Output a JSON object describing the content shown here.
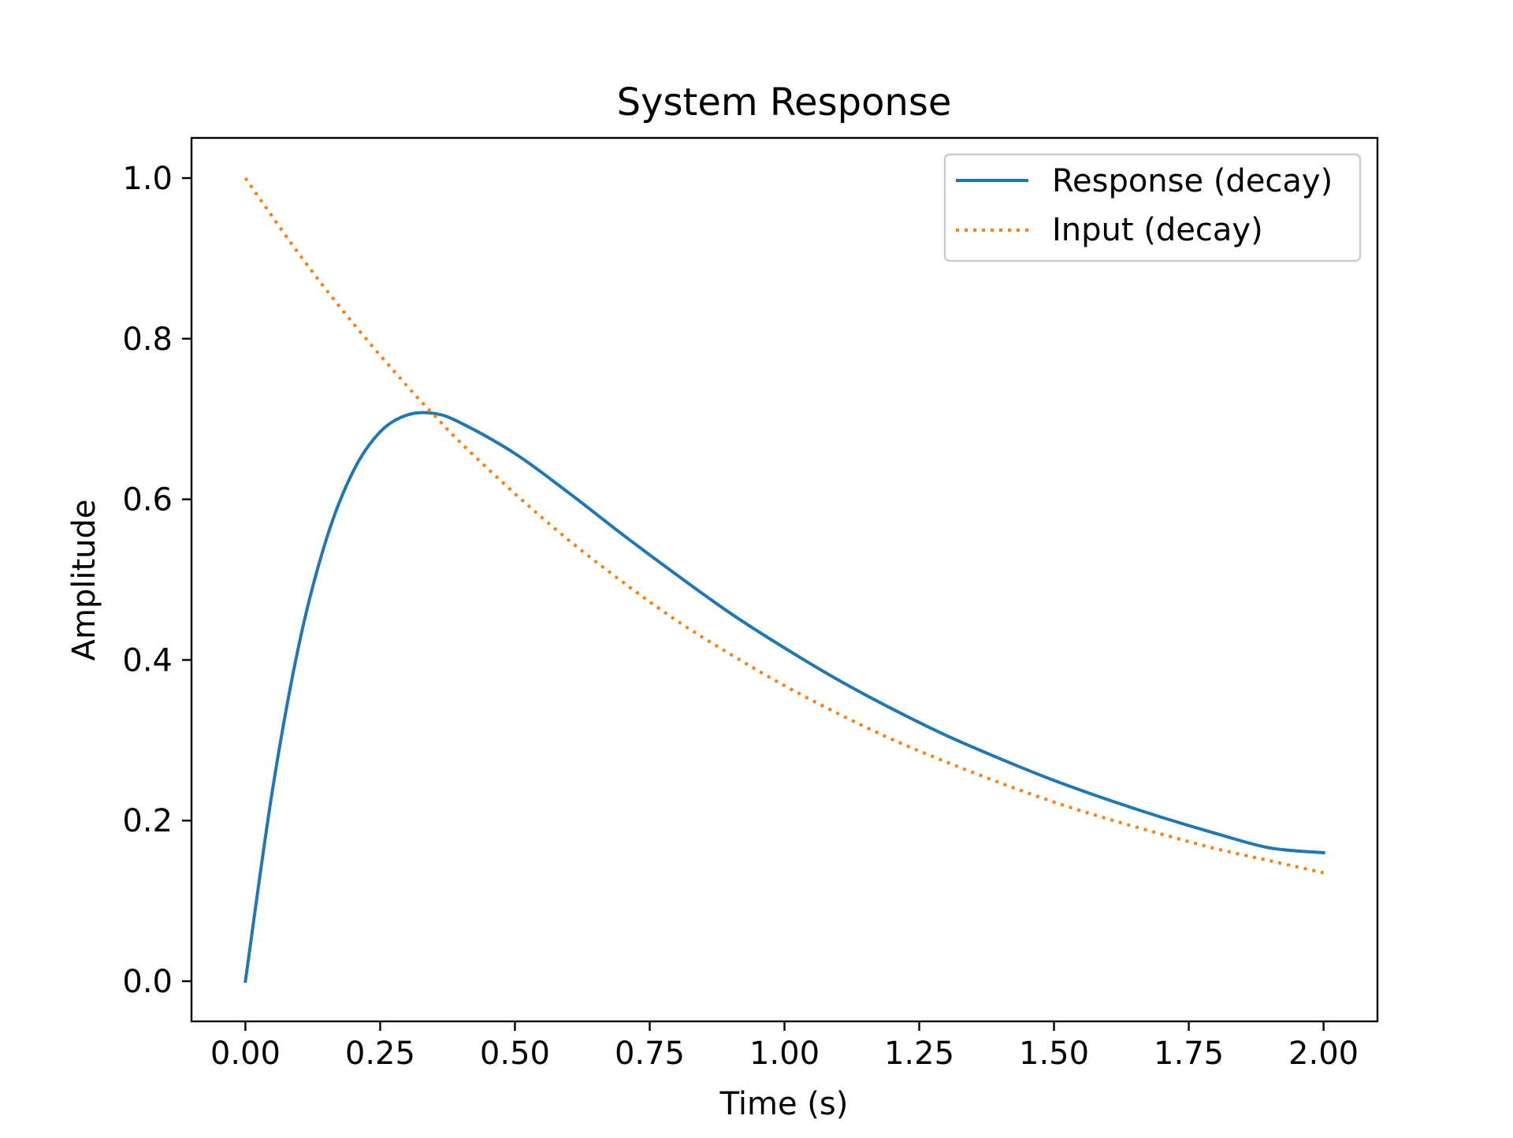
{
  "chart_data": {
    "type": "line",
    "title": "System Response",
    "xlabel": "Time (s)",
    "ylabel": "Amplitude",
    "xlim": [
      -0.1,
      2.1
    ],
    "ylim": [
      -0.05,
      1.05
    ],
    "x_ticks": [
      0.0,
      0.25,
      0.5,
      0.75,
      1.0,
      1.25,
      1.5,
      1.75,
      2.0
    ],
    "x_tick_labels": [
      "0.00",
      "0.25",
      "0.50",
      "0.75",
      "1.00",
      "1.25",
      "1.50",
      "1.75",
      "2.00"
    ],
    "y_ticks": [
      0.0,
      0.2,
      0.4,
      0.6,
      0.8,
      1.0
    ],
    "y_tick_labels": [
      "0.0",
      "0.2",
      "0.4",
      "0.6",
      "0.8",
      "1.0"
    ],
    "grid": false,
    "legend_position": "top-right",
    "series": [
      {
        "name": "Response (decay)",
        "color": "#1f77b4",
        "style": "solid",
        "x": [
          0.0,
          0.05,
          0.1,
          0.15,
          0.2,
          0.25,
          0.3,
          0.35,
          0.4,
          0.5,
          0.6,
          0.7,
          0.8,
          0.9,
          1.0,
          1.1,
          1.2,
          1.3,
          1.4,
          1.5,
          1.6,
          1.7,
          1.8,
          1.9,
          2.0
        ],
        "y": [
          0.0,
          0.237,
          0.421,
          0.55,
          0.635,
          0.684,
          0.705,
          0.707,
          0.695,
          0.657,
          0.608,
          0.556,
          0.506,
          0.458,
          0.415,
          0.375,
          0.339,
          0.306,
          0.277,
          0.25,
          0.226,
          0.204,
          0.184,
          0.166,
          0.16
        ]
      },
      {
        "name": "Input (decay)",
        "color": "#ff7f0e",
        "style": "dotted",
        "x": [
          0.0,
          0.1,
          0.2,
          0.3,
          0.35,
          0.4,
          0.5,
          0.6,
          0.7,
          0.8,
          0.9,
          1.0,
          1.1,
          1.2,
          1.3,
          1.4,
          1.5,
          1.6,
          1.7,
          1.8,
          1.9,
          2.0
        ],
        "y": [
          1.0,
          0.905,
          0.819,
          0.741,
          0.705,
          0.67,
          0.607,
          0.549,
          0.497,
          0.449,
          0.407,
          0.368,
          0.333,
          0.301,
          0.273,
          0.247,
          0.223,
          0.202,
          0.183,
          0.165,
          0.15,
          0.135
        ]
      }
    ]
  }
}
